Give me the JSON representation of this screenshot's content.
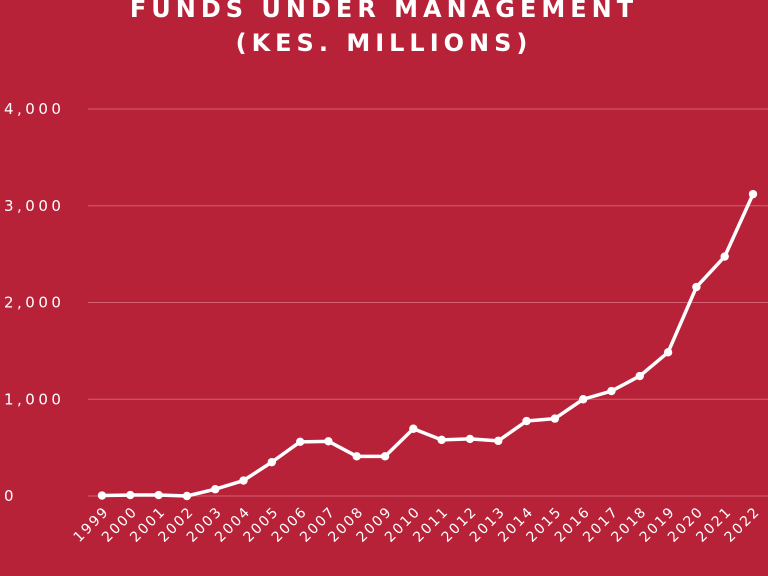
{
  "chart_data": {
    "type": "line",
    "title": "FUNDS UNDER MANAGEMENT",
    "subtitle": "(KES. MILLIONS)",
    "xlabel": "",
    "ylabel": "",
    "ylim": [
      0,
      4000
    ],
    "yticks": [
      0,
      1000,
      2000,
      3000,
      4000
    ],
    "ytick_labels": [
      "0",
      "1,000",
      "2,000",
      "3,000",
      "4,000"
    ],
    "grid": true,
    "legend": "none",
    "categories": [
      "1999",
      "2000",
      "2001",
      "2002",
      "2003",
      "2004",
      "2005",
      "2006",
      "2007",
      "2008",
      "2009",
      "2010",
      "2011",
      "2012",
      "2013",
      "2014",
      "2015",
      "2016",
      "2017",
      "2018",
      "2019",
      "2020",
      "2021",
      "2022"
    ],
    "series": [
      {
        "values": [
          5,
          10,
          10,
          0,
          70,
          160,
          350,
          560,
          565,
          410,
          410,
          695,
          580,
          590,
          570,
          775,
          800,
          1000,
          1085,
          1240,
          1485,
          2160,
          2475,
          3120
        ]
      }
    ]
  },
  "colors": {
    "background": "#b82238",
    "line": "#ffffff",
    "grid": "#d46071",
    "text": "#ffffff"
  }
}
